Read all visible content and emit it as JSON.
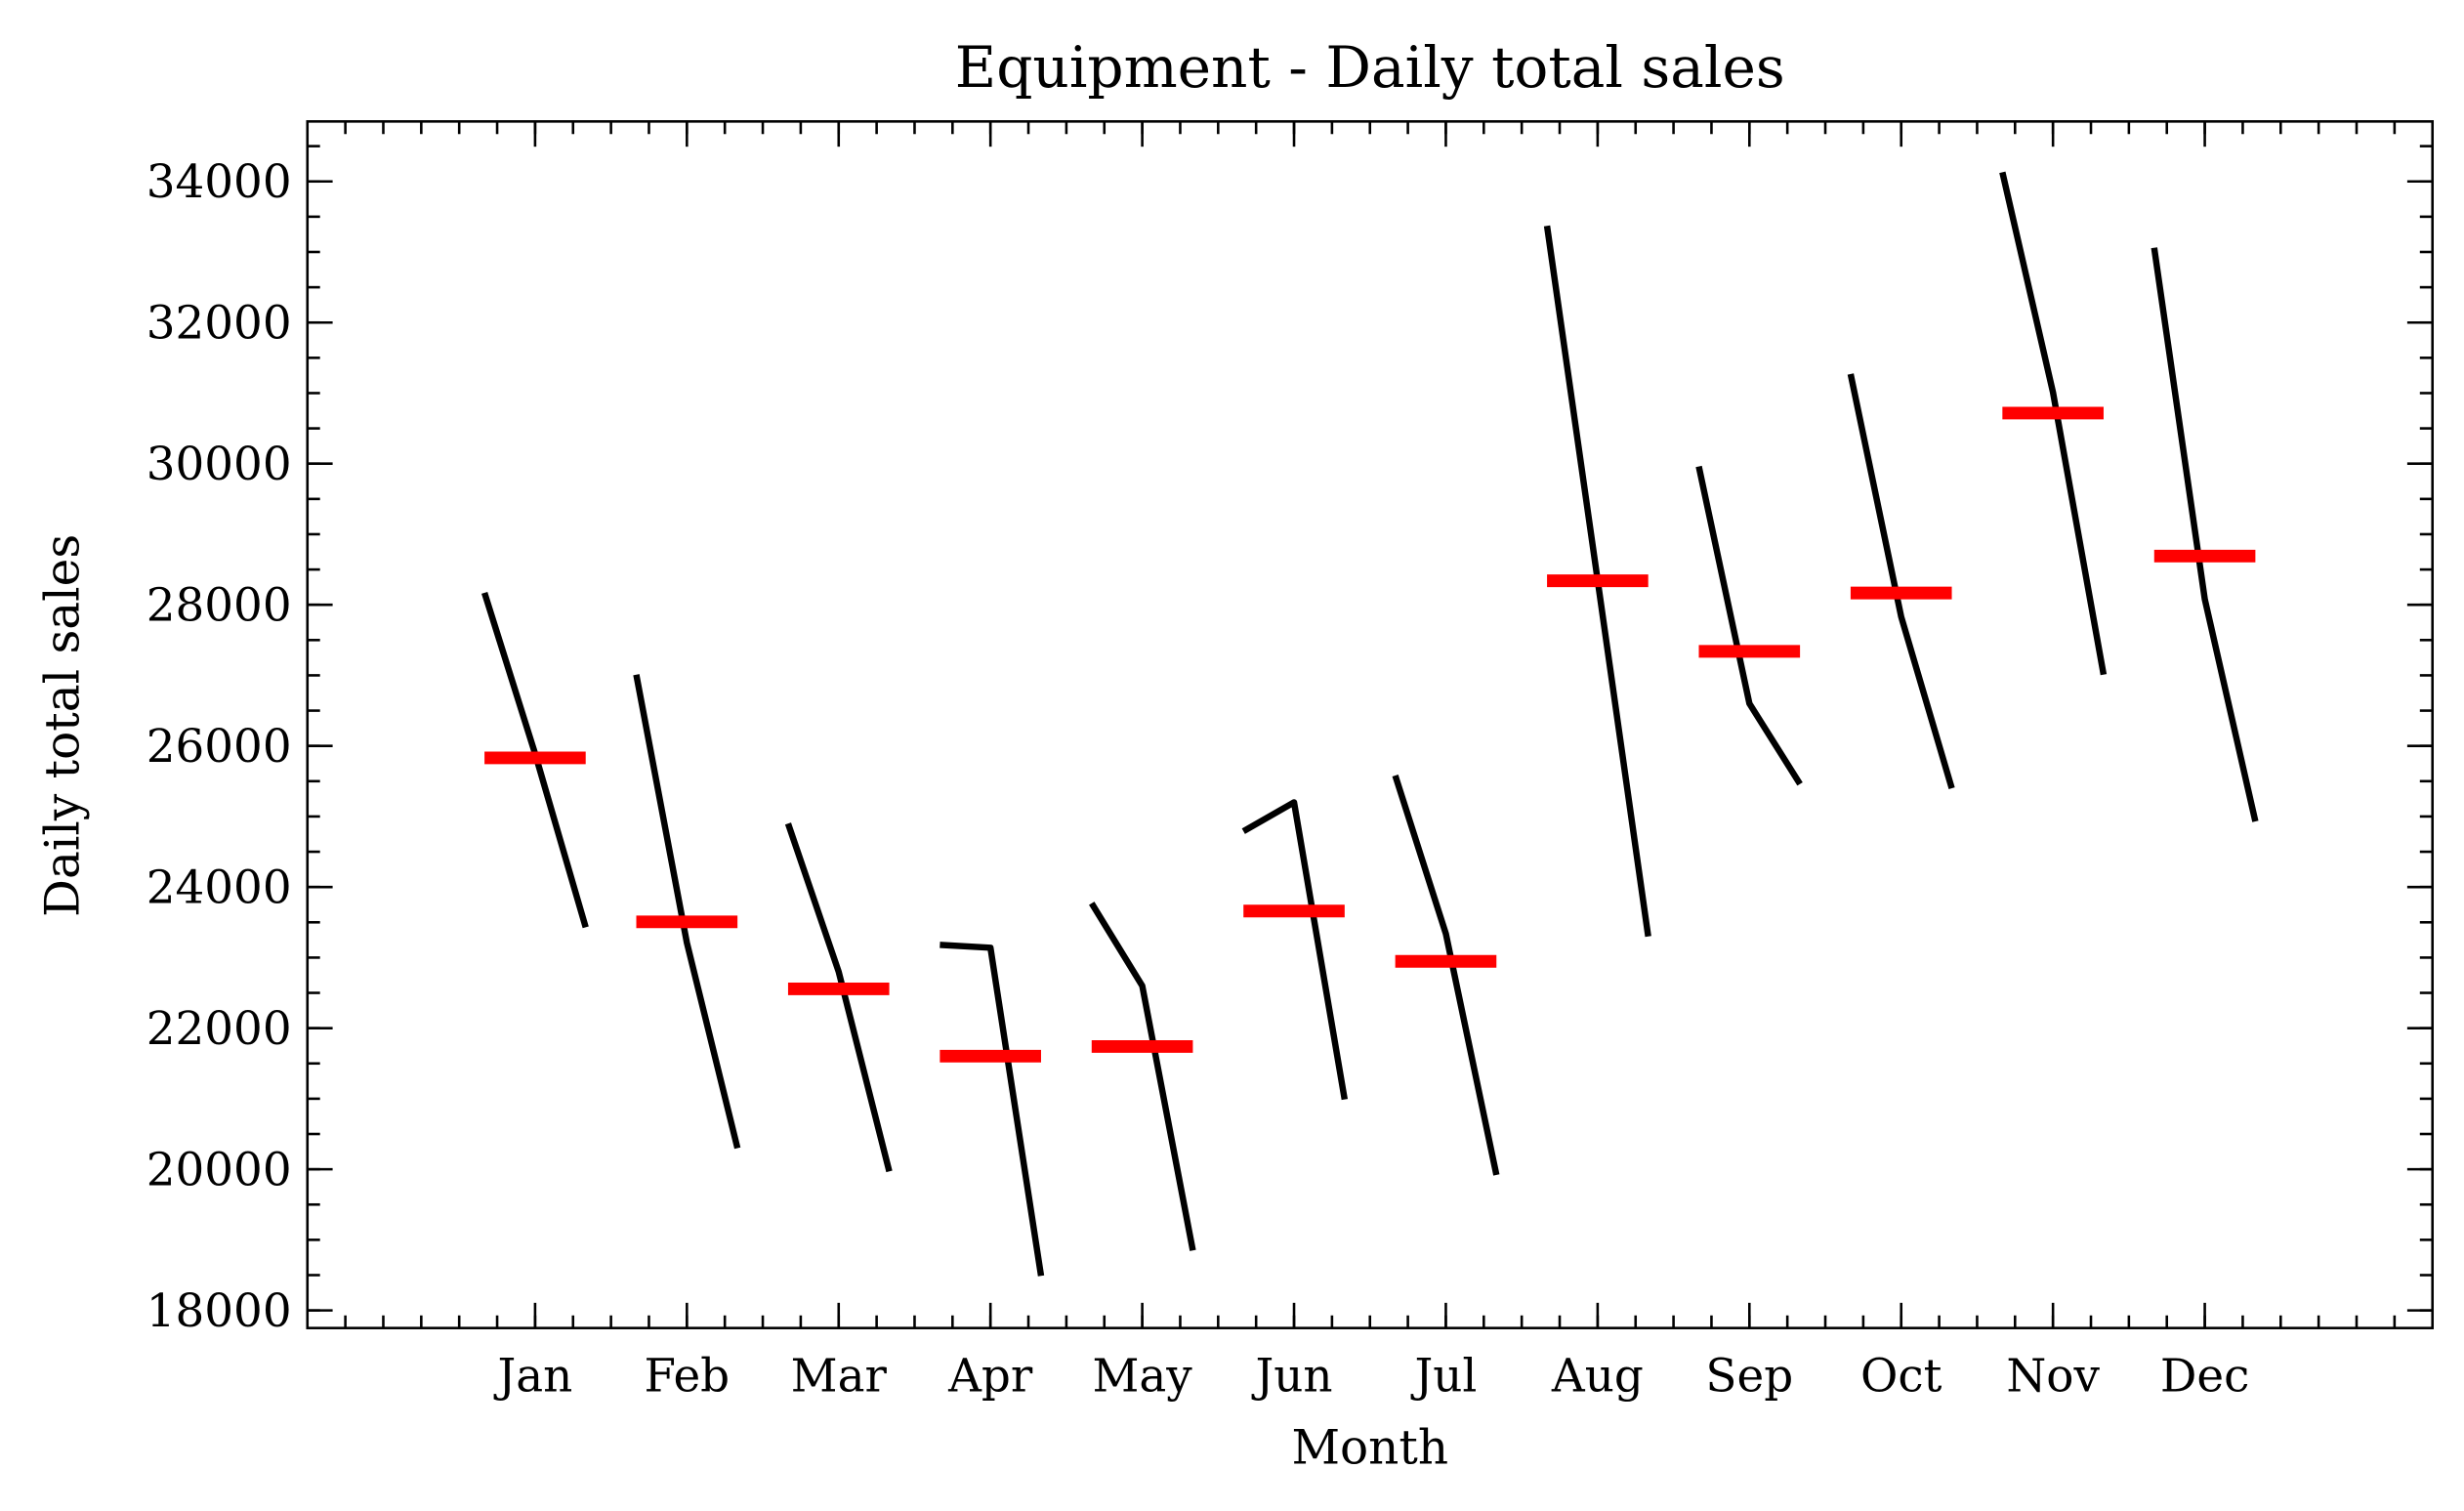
{
  "chart_data": {
    "type": "month_plot",
    "title": "Equipment - Daily total sales",
    "xlabel": "Month",
    "ylabel": "Daily total sales",
    "categories": [
      "Jan",
      "Feb",
      "Mar",
      "Apr",
      "May",
      "Jun",
      "Jul",
      "Aug",
      "Sep",
      "Oct",
      "Nov",
      "Dec"
    ],
    "values": [
      [
        28170,
        25890,
        23430
      ],
      [
        27010,
        23210,
        20300
      ],
      [
        24900,
        22800,
        19970
      ],
      [
        23180,
        23140,
        18490
      ],
      [
        23770,
        22600,
        18850
      ],
      [
        24790,
        25200,
        20990
      ],
      [
        25580,
        23340,
        19920
      ],
      [
        33370,
        28350,
        23300
      ],
      [
        29960,
        26600,
        25460
      ],
      [
        31270,
        27830,
        25400
      ],
      [
        34130,
        31010,
        27010
      ],
      [
        33060,
        28080,
        24930
      ]
    ],
    "means": [
      25830,
      23507,
      22557,
      21603,
      21740,
      23660,
      22947,
      28340,
      27340,
      28167,
      30717,
      28690
    ],
    "color": "#000000",
    "mean_color": "#ff0000",
    "ylim": [
      17750,
      34850
    ],
    "yticks": [
      18000,
      20000,
      22000,
      24000,
      26000,
      28000,
      30000,
      32000,
      34000
    ]
  }
}
